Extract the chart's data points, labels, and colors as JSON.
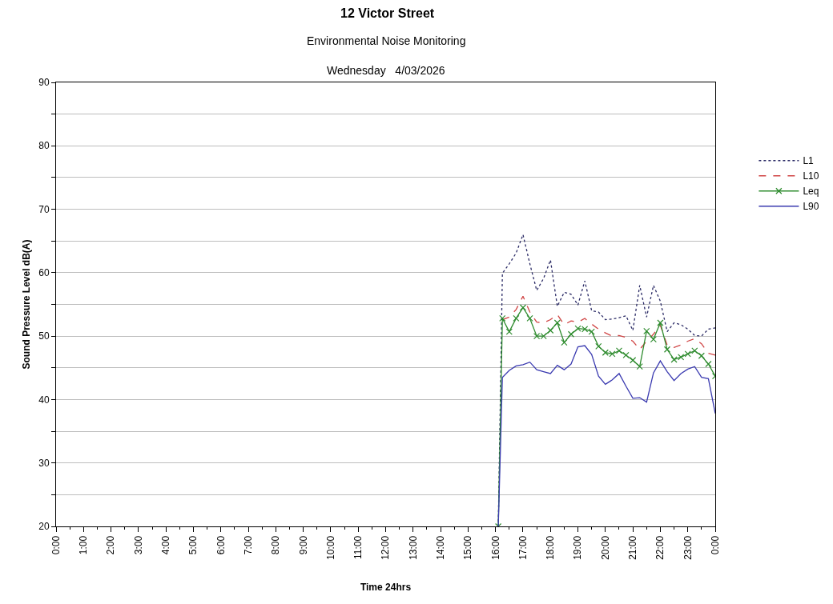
{
  "chart_data": {
    "type": "line",
    "title": "12 Victor Street",
    "subtitle": "Environmental Noise Monitoring\nWednesday   4/03/2026",
    "xlabel": "Time 24hrs",
    "ylabel": "Sound Pressure Level dB(A)",
    "x": [
      16.1,
      16.25,
      16.5,
      16.75,
      17.0,
      17.25,
      17.5,
      17.75,
      18.0,
      18.25,
      18.5,
      18.75,
      19.0,
      19.25,
      19.5,
      19.75,
      20.0,
      20.25,
      20.5,
      20.75,
      21.0,
      21.25,
      21.5,
      21.75,
      22.0,
      22.25,
      22.5,
      22.75,
      23.0,
      23.25,
      23.5,
      23.75,
      24.0
    ],
    "series": [
      {
        "name": "L1",
        "color": "#2b2b66",
        "line_style": "dotted",
        "marker": "none",
        "values": [
          20,
          59.9,
          61.4,
          63.1,
          66.0,
          61.4,
          57.2,
          59.1,
          62.0,
          54.7,
          56.9,
          56.6,
          54.9,
          58.7,
          54.0,
          53.8,
          52.6,
          52.7,
          52.9,
          53.2,
          50.9,
          58.0,
          53.0,
          58.0,
          55.5,
          50.7,
          52.1,
          51.8,
          51.1,
          50.1,
          50.0,
          51.1,
          51.3
        ]
      },
      {
        "name": "L10",
        "color": "#d04545",
        "line_style": "dashed",
        "marker": "none",
        "values": [
          null,
          52.6,
          53.0,
          54.2,
          56.3,
          53.8,
          52.2,
          52.1,
          52.6,
          53.4,
          51.8,
          52.4,
          52.2,
          52.8,
          51.9,
          51.1,
          50.5,
          50.0,
          50.1,
          49.8,
          49.2,
          47.9,
          49.2,
          50.3,
          51.7,
          48.6,
          48.2,
          48.6,
          49.2,
          49.6,
          48.8,
          47.3,
          47.0
        ]
      },
      {
        "name": "Leq",
        "color": "#2e8b2e",
        "line_style": "solid",
        "marker": "cross",
        "values": [
          20,
          52.8,
          50.7,
          52.8,
          54.5,
          52.8,
          50.0,
          50.0,
          50.9,
          52.1,
          49.0,
          50.3,
          51.2,
          51.1,
          50.7,
          48.4,
          47.4,
          47.2,
          47.7,
          47.0,
          46.2,
          45.2,
          50.8,
          49.5,
          52.1,
          47.9,
          46.3,
          46.7,
          47.2,
          47.7,
          46.9,
          45.6,
          43.7
        ]
      },
      {
        "name": "L90",
        "color": "#3a3ab0",
        "line_style": "solid",
        "marker": "none",
        "values": [
          20,
          43.5,
          44.6,
          45.3,
          45.5,
          45.9,
          44.7,
          44.4,
          44.1,
          45.4,
          44.7,
          45.6,
          48.3,
          48.5,
          47.1,
          43.7,
          42.4,
          43.1,
          44.1,
          42.1,
          40.2,
          40.3,
          39.6,
          44.2,
          46.1,
          44.4,
          43.0,
          44.1,
          44.8,
          45.2,
          43.5,
          43.3,
          37.8
        ]
      }
    ],
    "xlim": [
      0,
      24
    ],
    "xticks": [
      {
        "value": 0,
        "label": "0:00"
      },
      {
        "value": 1,
        "label": "1:00"
      },
      {
        "value": 2,
        "label": "2:00"
      },
      {
        "value": 3,
        "label": "3:00"
      },
      {
        "value": 4,
        "label": "4:00"
      },
      {
        "value": 5,
        "label": "5:00"
      },
      {
        "value": 6,
        "label": "6:00"
      },
      {
        "value": 7,
        "label": "7:00"
      },
      {
        "value": 8,
        "label": "8:00"
      },
      {
        "value": 9,
        "label": "9:00"
      },
      {
        "value": 10,
        "label": "10:00"
      },
      {
        "value": 11,
        "label": "11:00"
      },
      {
        "value": 12,
        "label": "12:00"
      },
      {
        "value": 13,
        "label": "13:00"
      },
      {
        "value": 14,
        "label": "14:00"
      },
      {
        "value": 15,
        "label": "15:00"
      },
      {
        "value": 16,
        "label": "16:00"
      },
      {
        "value": 17,
        "label": "17:00"
      },
      {
        "value": 18,
        "label": "18:00"
      },
      {
        "value": 19,
        "label": "19:00"
      },
      {
        "value": 20,
        "label": "20:00"
      },
      {
        "value": 21,
        "label": "21:00"
      },
      {
        "value": 22,
        "label": "22:00"
      },
      {
        "value": 23,
        "label": "23:00"
      },
      {
        "value": 24,
        "label": "0:00"
      }
    ],
    "ylim": [
      20,
      90
    ],
    "yticks": [
      20,
      {
        "value": 25,
        "label": null
      },
      30,
      {
        "value": 35,
        "label": null
      },
      40,
      {
        "value": 45,
        "label": null
      },
      50,
      {
        "value": 55,
        "label": null
      },
      60,
      {
        "value": 65,
        "label": null
      },
      70,
      {
        "value": 75,
        "label": null
      },
      80,
      {
        "value": 85,
        "label": null
      },
      90
    ],
    "grid": "y",
    "legend": "right"
  }
}
